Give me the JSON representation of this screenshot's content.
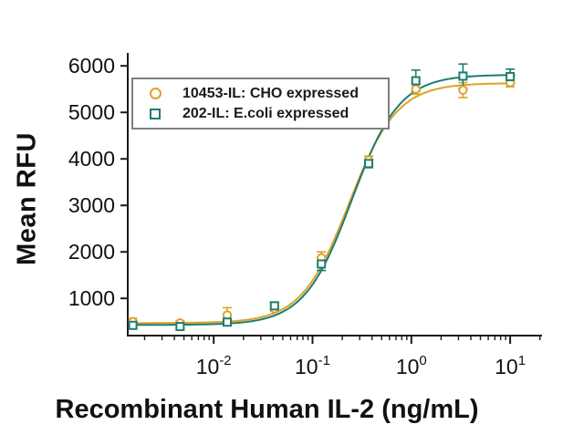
{
  "figure": {
    "y_axis_label": "Mean RFU",
    "x_axis_title": "Recombinant Human IL-2 (ng/mL)"
  },
  "colors": {
    "series_cho": "#DFA128",
    "series_ecoli": "#1B7E70",
    "axis": "#1a1a1a",
    "legend_border": "#7f7f7f"
  },
  "chart_data": {
    "type": "scatter",
    "title": "",
    "xlabel": "Recombinant Human IL-2 (ng/mL)",
    "ylabel": "Mean RFU",
    "x_scale": "log",
    "grid": false,
    "legend_position": "upper-left",
    "xlim": [
      0.00135,
      21
    ],
    "ylim": [
      200,
      6240
    ],
    "xticks": [
      {
        "value": 0.01,
        "base": "10",
        "exp": "-2"
      },
      {
        "value": 0.1,
        "base": "10",
        "exp": "-1"
      },
      {
        "value": 1,
        "base": "10",
        "exp": "0"
      },
      {
        "value": 10,
        "base": "10",
        "exp": "1"
      }
    ],
    "yticks": [
      {
        "value": 1000,
        "label": "1000"
      },
      {
        "value": 2000,
        "label": "2000"
      },
      {
        "value": 3000,
        "label": "3000"
      },
      {
        "value": 4000,
        "label": "4000"
      },
      {
        "value": 5000,
        "label": "5000"
      },
      {
        "value": 6000,
        "label": "6000"
      }
    ],
    "x": [
      0.00152,
      0.00457,
      0.0137,
      0.0412,
      0.123,
      0.37,
      1.11,
      3.33,
      10
    ],
    "series": [
      {
        "name": "10453-IL: CHO expressed",
        "marker": "circle",
        "color": "#DFA128",
        "values": [
          500,
          470,
          640,
          780,
          1870,
          3970,
          5500,
          5480,
          5640
        ],
        "errors": [
          70,
          50,
          160,
          60,
          130,
          90,
          110,
          160,
          90
        ],
        "fit": {
          "model": "4PL",
          "bottom": 470,
          "top": 5630,
          "ec50": 0.235,
          "hill": 1.8
        }
      },
      {
        "name": "202-IL: E.coli expressed",
        "marker": "square",
        "color": "#1B7E70",
        "values": [
          420,
          395,
          490,
          840,
          1740,
          3900,
          5680,
          5780,
          5770
        ],
        "errors": [
          60,
          50,
          60,
          70,
          140,
          90,
          230,
          260,
          160
        ],
        "fit": {
          "model": "4PL",
          "bottom": 430,
          "top": 5810,
          "ec50": 0.25,
          "hill": 1.8
        }
      }
    ]
  }
}
